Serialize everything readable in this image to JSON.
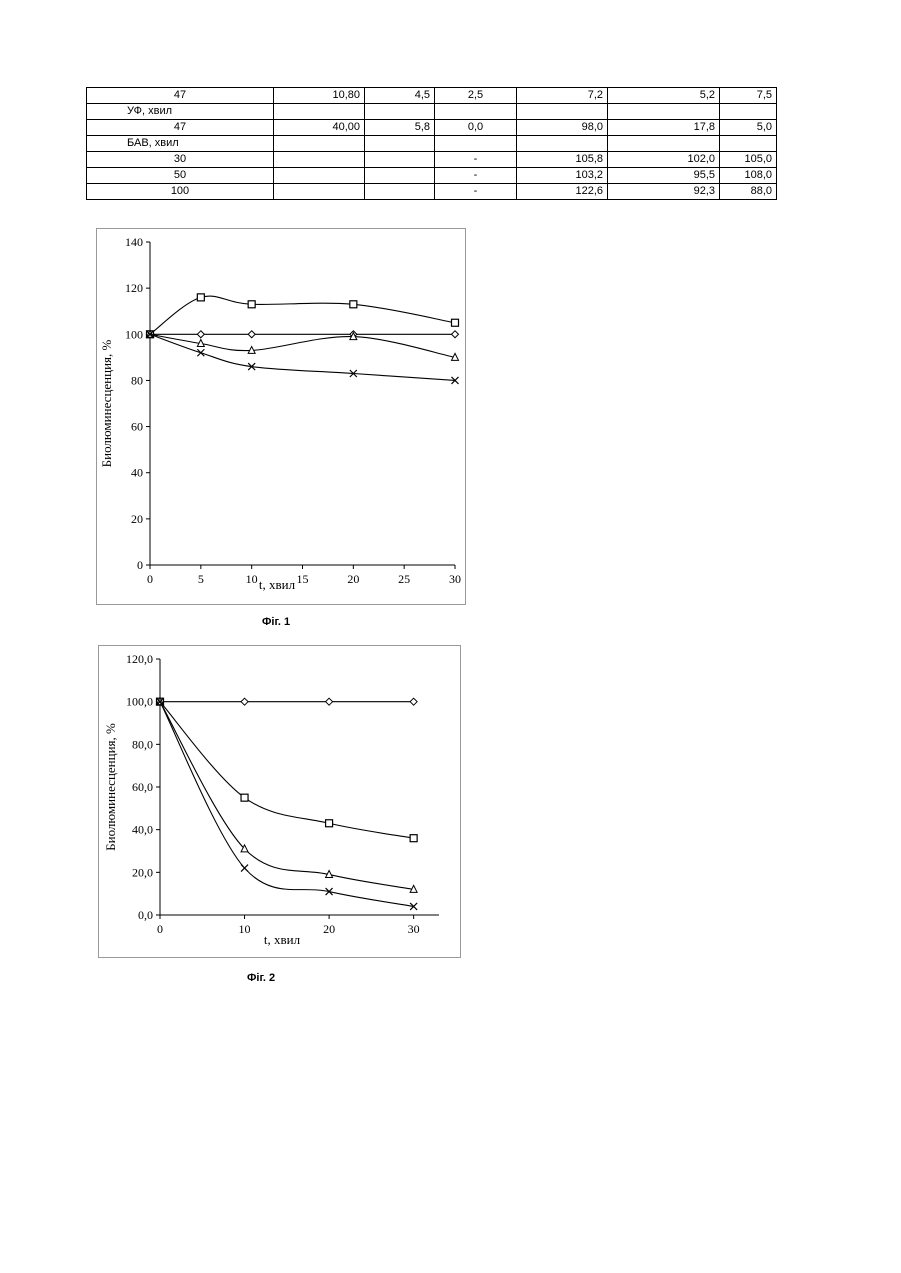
{
  "table": {
    "rows": [
      {
        "type": "data",
        "cells": [
          "47",
          "10,80",
          "4,5",
          "2,5",
          "7,2",
          "5,2",
          "7,5"
        ]
      },
      {
        "type": "label",
        "cells": [
          "УФ, хвил",
          "",
          "",
          "",
          "",
          "",
          ""
        ]
      },
      {
        "type": "data",
        "cells": [
          "47",
          "40,00",
          "5,8",
          "0,0",
          "98,0",
          "17,8",
          "5,0"
        ]
      },
      {
        "type": "label",
        "cells": [
          "БАВ, хвил",
          "",
          "",
          "",
          "",
          "",
          ""
        ]
      },
      {
        "type": "data",
        "cells": [
          "30",
          "",
          "",
          "-",
          "105,8",
          "102,0",
          "105,0"
        ]
      },
      {
        "type": "data",
        "cells": [
          "50",
          "",
          "",
          "-",
          "103,2",
          "95,5",
          "108,0"
        ]
      },
      {
        "type": "data",
        "cells": [
          "100",
          "",
          "",
          "-",
          "122,6",
          "92,3",
          "88,0"
        ]
      }
    ]
  },
  "chart_data": [
    {
      "type": "line",
      "caption": "Фіг. 1",
      "xlabel": "t, хвил",
      "ylabel": "Биолюминесценция, %",
      "xlim": [
        0,
        30
      ],
      "ylim": [
        0,
        140
      ],
      "xticks": [
        0,
        5,
        10,
        15,
        20,
        25,
        30
      ],
      "yticks": [
        0,
        20,
        40,
        60,
        80,
        100,
        120,
        140
      ],
      "ytick_labels": [
        "0",
        "20",
        "40",
        "60",
        "80",
        "100",
        "120",
        "140"
      ],
      "grid": false,
      "series": [
        {
          "marker": "diamond",
          "x": [
            0,
            5,
            10,
            20,
            30
          ],
          "y": [
            100,
            100,
            100,
            100,
            100
          ]
        },
        {
          "marker": "square",
          "x": [
            0,
            5,
            10,
            20,
            30
          ],
          "y": [
            100,
            116,
            113,
            113,
            105
          ]
        },
        {
          "marker": "triangle",
          "x": [
            0,
            5,
            10,
            20,
            30
          ],
          "y": [
            100,
            96,
            93,
            99,
            90
          ]
        },
        {
          "marker": "cross",
          "x": [
            0,
            5,
            10,
            20,
            30
          ],
          "y": [
            100,
            92,
            86,
            83,
            80
          ]
        }
      ]
    },
    {
      "type": "line",
      "caption": "Фіг. 2",
      "xlabel": "t, хвил",
      "ylabel": "Биолюминесценция, %",
      "xlim": [
        0,
        33
      ],
      "ylim": [
        0,
        120
      ],
      "xticks": [
        0,
        10,
        20,
        30
      ],
      "yticks": [
        0,
        20,
        40,
        60,
        80,
        100,
        120
      ],
      "ytick_labels": [
        "0,0",
        "20,0",
        "40,0",
        "60,0",
        "80,0",
        "100,0",
        "120,0"
      ],
      "grid": false,
      "series": [
        {
          "marker": "diamond",
          "x": [
            0,
            10,
            20,
            30
          ],
          "y": [
            100,
            100,
            100,
            100
          ]
        },
        {
          "marker": "square",
          "x": [
            0,
            10,
            20,
            30
          ],
          "y": [
            100,
            55,
            43,
            36
          ]
        },
        {
          "marker": "triangle",
          "x": [
            0,
            10,
            20,
            30
          ],
          "y": [
            100,
            31,
            19,
            12
          ]
        },
        {
          "marker": "cross",
          "x": [
            0,
            10,
            20,
            30
          ],
          "y": [
            100,
            22,
            11,
            4
          ]
        }
      ]
    }
  ]
}
